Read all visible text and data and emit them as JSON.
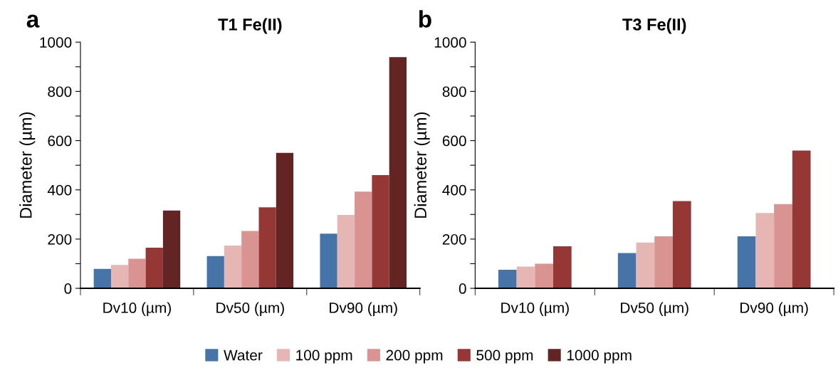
{
  "chart_data": [
    {
      "type": "bar",
      "title": "T1 Fe(II)",
      "ylabel": "Diameter (µm)",
      "annotations": [
        "a"
      ],
      "legend": "bottom",
      "categories": [
        "Dv10 (µm)",
        "Dv50 (µm)",
        "Dv90 (µm)"
      ],
      "ylim": [
        0,
        1000
      ],
      "yticks": [
        0,
        {
          "value": 100,
          "label": null
        },
        200,
        {
          "value": 300,
          "label": null
        },
        400,
        {
          "value": 500,
          "label": null
        },
        600,
        {
          "value": 700,
          "label": null
        },
        800,
        {
          "value": 900,
          "label": null
        },
        1000
      ],
      "series": [
        {
          "name": "Water",
          "color": "#4673a8",
          "values": [
            79,
            131,
            222
          ]
        },
        {
          "name": "100 ppm",
          "color": "#e6b6b5",
          "values": [
            95,
            174,
            298
          ]
        },
        {
          "name": "200 ppm",
          "color": "#d99391",
          "values": [
            120,
            233,
            393
          ]
        },
        {
          "name": "500 ppm",
          "color": "#953735",
          "values": [
            165,
            329,
            460
          ]
        },
        {
          "name": "1000 ppm",
          "color": "#632524",
          "values": [
            316,
            550,
            939
          ]
        }
      ]
    },
    {
      "type": "bar",
      "title": "T3 Fe(II)",
      "ylabel": "Diameter (µm)",
      "annotations": [
        "b"
      ],
      "legend": "bottom",
      "categories": [
        "Dv10 (µm)",
        "Dv50 (µm)",
        "Dv90 (µm)"
      ],
      "ylim": [
        0,
        1000
      ],
      "yticks": [
        0,
        {
          "value": 100,
          "label": null
        },
        200,
        {
          "value": 300,
          "label": null
        },
        400,
        {
          "value": 500,
          "label": null
        },
        600,
        {
          "value": 700,
          "label": null
        },
        800,
        {
          "value": 900,
          "label": null
        },
        1000
      ],
      "series": [
        {
          "name": "Water",
          "color": "#4673a8",
          "values": [
            75,
            143,
            211
          ]
        },
        {
          "name": "100 ppm",
          "color": "#e6b6b5",
          "values": [
            88,
            186,
            306
          ]
        },
        {
          "name": "200 ppm",
          "color": "#d99391",
          "values": [
            100,
            211,
            342
          ]
        },
        {
          "name": "500 ppm",
          "color": "#953735",
          "values": [
            171,
            354,
            560
          ]
        }
      ]
    }
  ]
}
